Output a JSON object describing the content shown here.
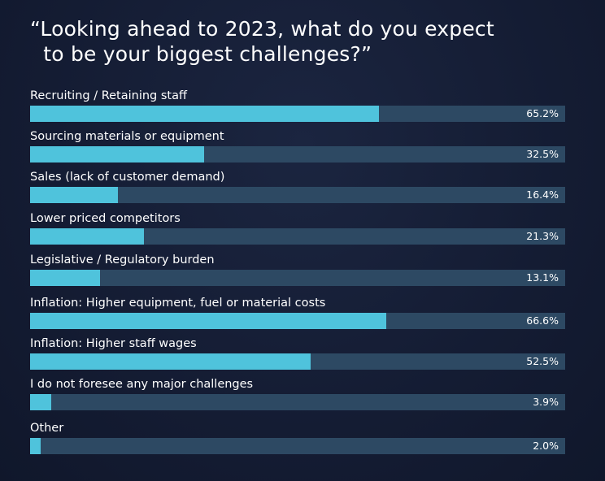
{
  "chart_data": {
    "type": "bar",
    "orientation": "horizontal",
    "title_line1": "“Looking ahead to 2023, what do you expect",
    "title_line2": "to be your biggest challenges?”",
    "xlim": [
      0,
      100
    ],
    "categories": [
      "Recruiting / Retaining staff",
      "Sourcing materials or equipment",
      "Sales (lack of customer demand)",
      "Lower priced competitors",
      "Legislative / Regulatory burden",
      "Inflation: Higher equipment, fuel or material costs",
      "Inflation: Higher staff wages",
      "I do not foresee any major challenges",
      "Other"
    ],
    "values": [
      65.2,
      32.5,
      16.4,
      21.3,
      13.1,
      66.6,
      52.5,
      3.9,
      2.0
    ],
    "value_labels": [
      "65.2%",
      "32.5%",
      "16.4%",
      "21.3%",
      "13.1%",
      "66.6%",
      "52.5%",
      "3.9%",
      "2.0%"
    ],
    "colors": {
      "bar": "#4fc3dc",
      "track": "#2d4963",
      "background": "#141c33"
    }
  }
}
